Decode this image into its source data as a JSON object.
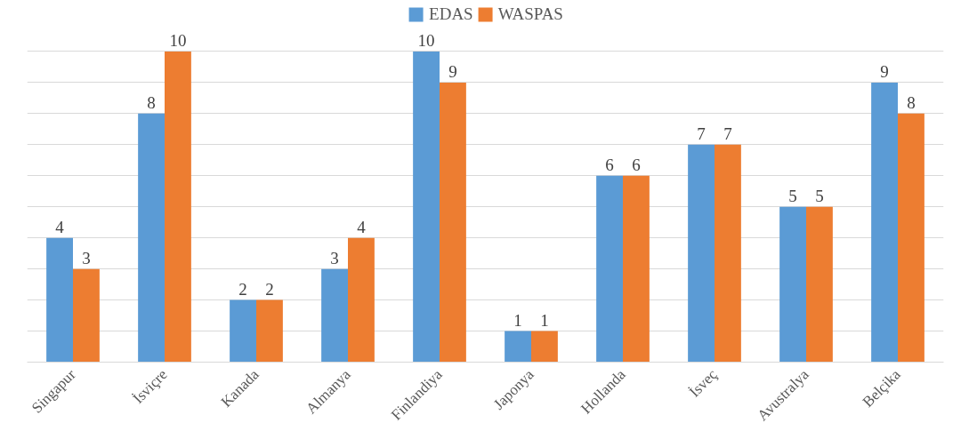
{
  "chart_data": {
    "type": "bar",
    "categories": [
      "Singapur",
      "İsviçre",
      "Kanada",
      "Almanya",
      "Finlandiya",
      "Japonya",
      "Hollanda",
      "İsveç",
      "Avustralya",
      "Belçika"
    ],
    "series": [
      {
        "name": "EDAS",
        "color": "#5b9bd5",
        "values": [
          4,
          8,
          2,
          3,
          10,
          1,
          6,
          7,
          5,
          9
        ]
      },
      {
        "name": "WASPAS",
        "color": "#ed7d31",
        "values": [
          3,
          10,
          2,
          4,
          9,
          1,
          6,
          7,
          5,
          8
        ]
      }
    ],
    "ylim": [
      0,
      11.5
    ],
    "yticks": [
      {
        "value": 0,
        "label": null
      },
      {
        "value": 1,
        "label": null
      },
      {
        "value": 2,
        "label": null
      },
      {
        "value": 3,
        "label": null
      },
      {
        "value": 4,
        "label": null
      },
      {
        "value": 5,
        "label": null
      },
      {
        "value": 6,
        "label": null
      },
      {
        "value": 7,
        "label": null
      },
      {
        "value": 8,
        "label": null
      },
      {
        "value": 9,
        "label": null
      },
      {
        "value": 10,
        "label": null
      }
    ],
    "grid": "y",
    "legend": "top",
    "tick_labels": "x",
    "data_labels": true
  }
}
